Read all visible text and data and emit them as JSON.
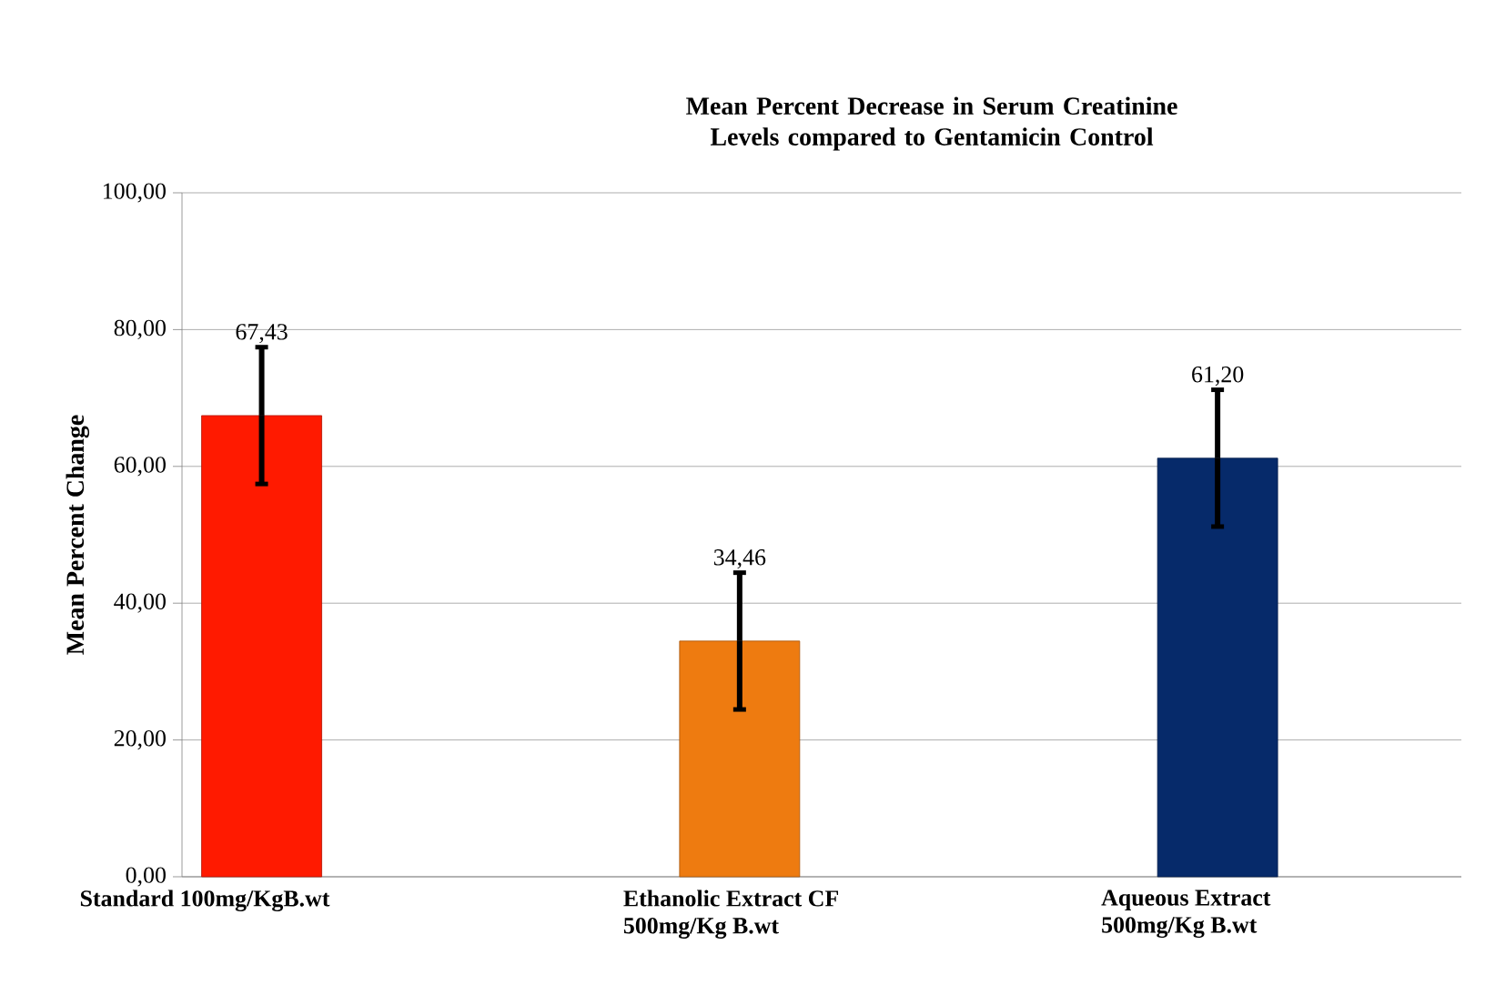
{
  "chart_data": {
    "type": "bar",
    "title": "Mean Percent Decrease in  Serum Creatinine Levels compared to Gentamicin Control",
    "ylabel": "Mean Percent Change",
    "categories": [
      "Standard 100mg/KgB.wt",
      "Ethanolic Extract CF 500mg/Kg B.wt",
      "Aqueous Extract 500mg/Kg B.wt"
    ],
    "values": [
      67.43,
      34.46,
      61.2
    ],
    "value_labels": [
      "67,43",
      "34,46",
      "61,20"
    ],
    "errors": [
      10,
      10,
      10
    ],
    "colors": [
      "#ff1a00",
      "#ee7b10",
      "#062a6a"
    ],
    "ylim": [
      0,
      100
    ],
    "yticks": [
      {
        "value": 0,
        "label": "0,00"
      },
      {
        "value": 20,
        "label": "20,00"
      },
      {
        "value": 40,
        "label": "40,00"
      },
      {
        "value": 60,
        "label": "60,00"
      },
      {
        "value": 80,
        "label": "80,00"
      },
      {
        "value": 100,
        "label": "100,00"
      }
    ],
    "grid": "y"
  }
}
